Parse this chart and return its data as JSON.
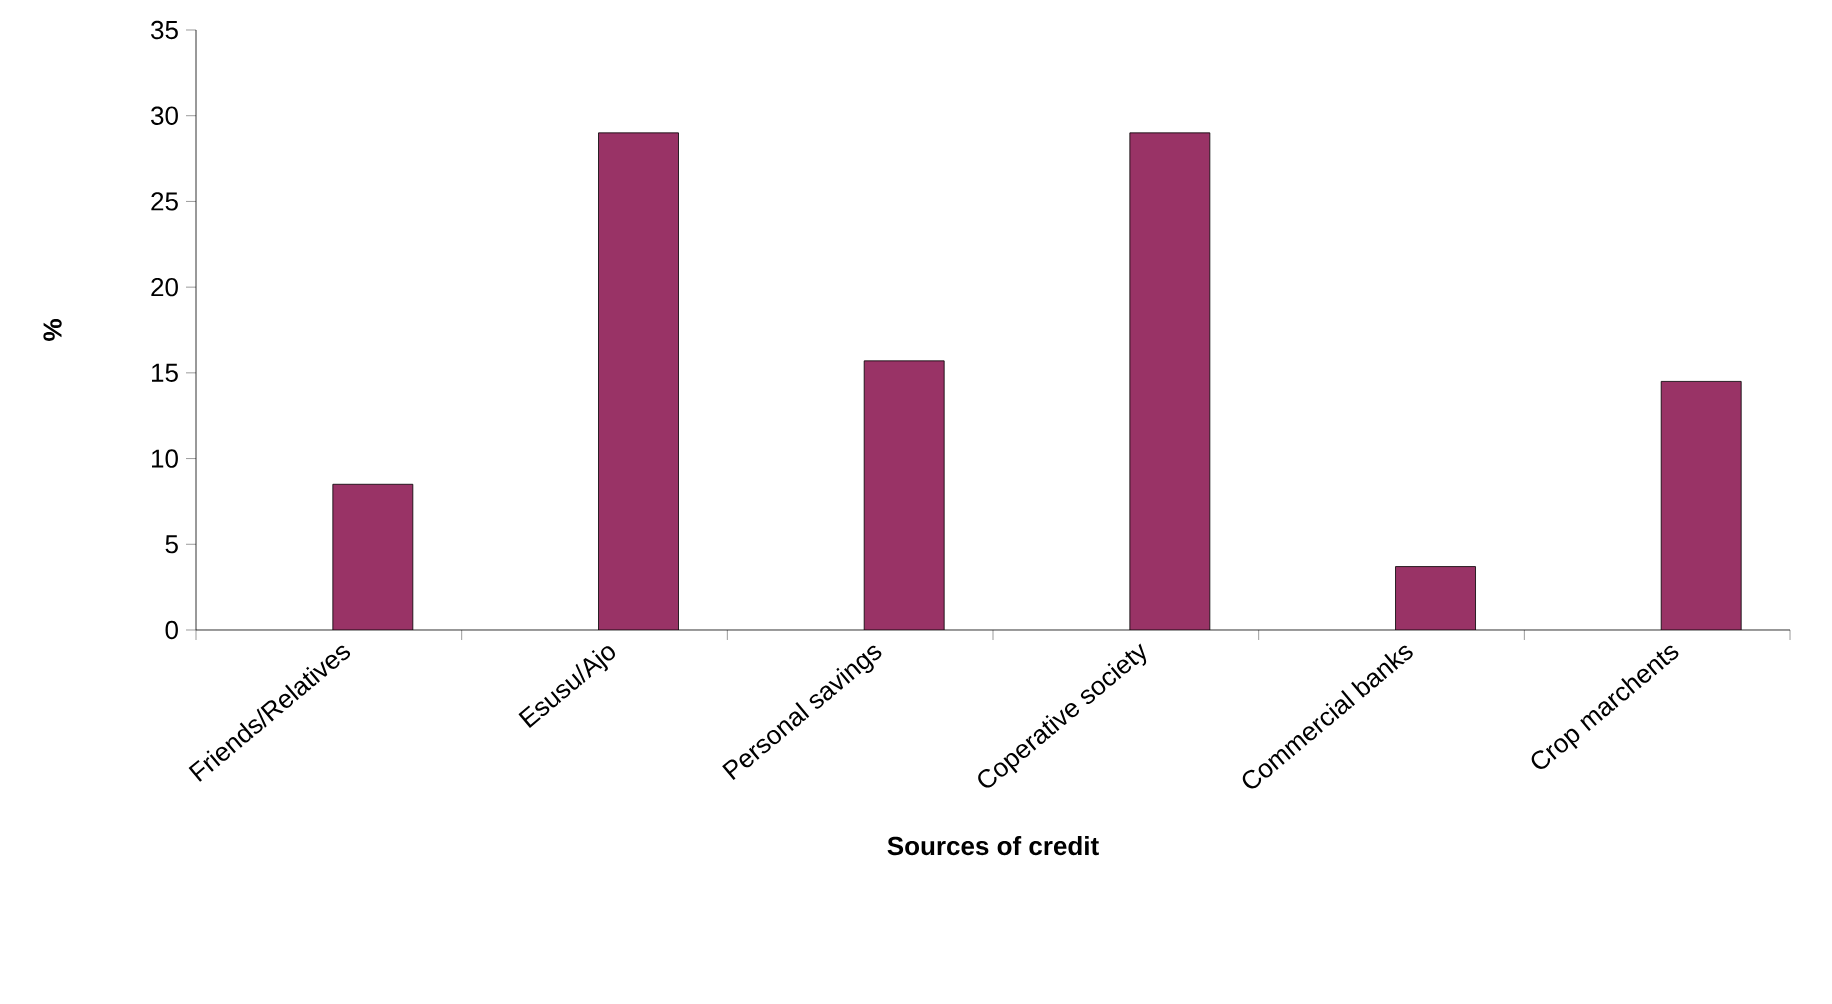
{
  "chart_data": {
    "type": "bar",
    "xlabel": "Sources of credit",
    "ylabel": "%",
    "categories": [
      "Friends/Relatives",
      "Esusu/Ajo",
      "Personal savings",
      "Coperative society",
      "Commercial banks",
      "Crop marchents"
    ],
    "values": [
      8.5,
      29,
      15.7,
      29,
      3.7,
      14.5
    ],
    "color": "#993366",
    "ylim": [
      0,
      35
    ],
    "yticks": [
      0,
      5,
      10,
      15,
      20,
      25,
      30,
      35
    ]
  }
}
